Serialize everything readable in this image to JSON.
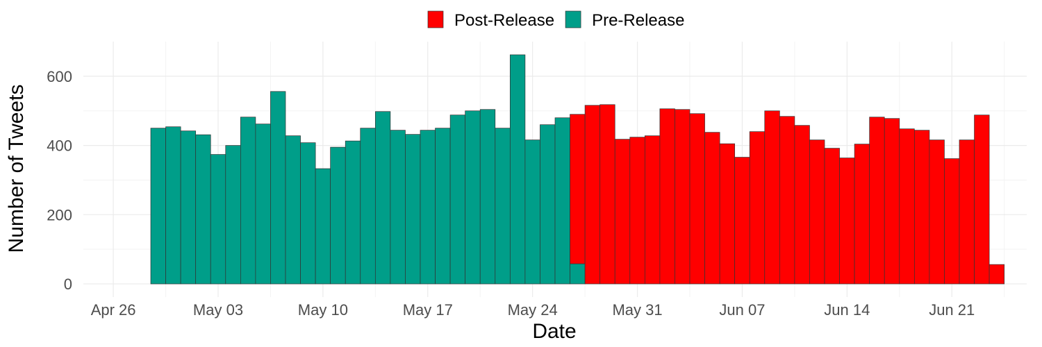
{
  "chart_data": {
    "type": "bar",
    "stacked": true,
    "xlabel": "Date",
    "ylabel": "Number of Tweets",
    "ylim": [
      -38,
      700
    ],
    "yticks": [
      0,
      200,
      400,
      600
    ],
    "xlim": [
      "2020-04-24",
      "2020-06-26"
    ],
    "xticks": [
      {
        "date": "2020-04-26",
        "label": "Apr 26"
      },
      {
        "date": "2020-05-03",
        "label": "May 03"
      },
      {
        "date": "2020-05-10",
        "label": "May 10"
      },
      {
        "date": "2020-05-17",
        "label": "May 17"
      },
      {
        "date": "2020-05-24",
        "label": "May 24"
      },
      {
        "date": "2020-05-31",
        "label": "May 31"
      },
      {
        "date": "2020-06-07",
        "label": "Jun 07"
      },
      {
        "date": "2020-06-14",
        "label": "Jun 14"
      },
      {
        "date": "2020-06-21",
        "label": "Jun 21"
      }
    ],
    "grid": true,
    "legend_position": "top",
    "legend": [
      {
        "name": "Post-Release",
        "color": "#ff0000"
      },
      {
        "name": "Pre-Release",
        "color": "#009e89"
      }
    ],
    "x": [
      "2020-04-29",
      "2020-04-30",
      "2020-05-01",
      "2020-05-02",
      "2020-05-03",
      "2020-05-04",
      "2020-05-05",
      "2020-05-06",
      "2020-05-07",
      "2020-05-08",
      "2020-05-09",
      "2020-05-10",
      "2020-05-11",
      "2020-05-12",
      "2020-05-13",
      "2020-05-14",
      "2020-05-15",
      "2020-05-16",
      "2020-05-17",
      "2020-05-18",
      "2020-05-19",
      "2020-05-20",
      "2020-05-21",
      "2020-05-22",
      "2020-05-23",
      "2020-05-24",
      "2020-05-25",
      "2020-05-26",
      "2020-05-27",
      "2020-05-28",
      "2020-05-29",
      "2020-05-30",
      "2020-05-31",
      "2020-06-01",
      "2020-06-02",
      "2020-06-03",
      "2020-06-04",
      "2020-06-05",
      "2020-06-06",
      "2020-06-07",
      "2020-06-08",
      "2020-06-09",
      "2020-06-10",
      "2020-06-11",
      "2020-06-12",
      "2020-06-13",
      "2020-06-14",
      "2020-06-15",
      "2020-06-16",
      "2020-06-17",
      "2020-06-18",
      "2020-06-19",
      "2020-06-20",
      "2020-06-21",
      "2020-06-22",
      "2020-06-23",
      "2020-06-24",
      "2020-06-25"
    ],
    "series": [
      {
        "name": "Pre-Release",
        "color": "#009e89",
        "values": [
          450,
          454,
          442,
          431,
          374,
          400,
          482,
          462,
          556,
          428,
          408,
          333,
          395,
          413,
          450,
          498,
          444,
          432,
          444,
          450,
          488,
          500,
          504,
          450,
          662,
          416,
          460,
          480,
          58,
          0,
          0,
          0,
          0,
          0,
          0,
          0,
          0,
          0,
          0,
          0,
          0,
          0,
          0,
          0,
          0,
          0,
          0,
          0,
          0,
          0,
          0,
          0,
          0,
          0,
          0,
          0,
          0,
          0
        ]
      },
      {
        "name": "Post-Release",
        "color": "#ff0000",
        "values": [
          0,
          0,
          0,
          0,
          0,
          0,
          0,
          0,
          0,
          0,
          0,
          0,
          0,
          0,
          0,
          0,
          0,
          0,
          0,
          0,
          0,
          0,
          0,
          0,
          0,
          0,
          0,
          0,
          432,
          516,
          518,
          418,
          424,
          428,
          506,
          504,
          492,
          438,
          405,
          366,
          440,
          500,
          484,
          458,
          416,
          392,
          364,
          404,
          482,
          478,
          448,
          444,
          416,
          362,
          416,
          488,
          56,
          0
        ]
      }
    ]
  }
}
